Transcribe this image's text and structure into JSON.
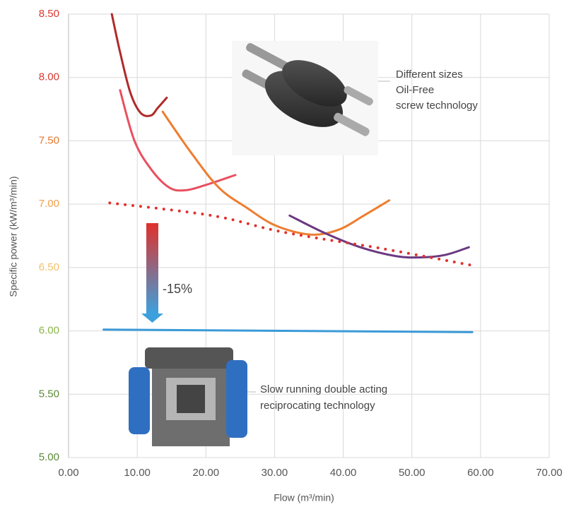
{
  "chart_data": {
    "type": "line",
    "xlabel": "Flow (m³/min)",
    "ylabel": "Specific power (kW/m³/min)",
    "xlim": [
      0,
      70
    ],
    "ylim": [
      5,
      8.5
    ],
    "xticks": [
      {
        "value": 0,
        "label": "0.00"
      },
      {
        "value": 10,
        "label": "10.00"
      },
      {
        "value": 20,
        "label": "20.00"
      },
      {
        "value": 30,
        "label": "30.00"
      },
      {
        "value": 40,
        "label": "40.00"
      },
      {
        "value": 50,
        "label": "50.00"
      },
      {
        "value": 60,
        "label": "60.00"
      },
      {
        "value": 70,
        "label": "70.00"
      }
    ],
    "yticks": [
      {
        "value": 5,
        "label": "5.00"
      },
      {
        "value": 5.5,
        "label": "5.50"
      },
      {
        "value": 6,
        "label": "6.00"
      },
      {
        "value": 6.5,
        "label": "6.50"
      },
      {
        "value": 7,
        "label": "7.00"
      },
      {
        "value": 7.5,
        "label": "7.50"
      },
      {
        "value": 8,
        "label": "8.00"
      },
      {
        "value": 8.5,
        "label": "8.50"
      }
    ],
    "ytick_colors": [
      "#5d8a3a",
      "#5d8a3a",
      "#8db64a",
      "#f2bf6a",
      "#f0a04b",
      "#e8762c",
      "#d9382f",
      "#d9382f"
    ],
    "grid": true,
    "series": [
      {
        "color": "#b02a2a",
        "style": "solid",
        "x": [
          6.3,
          7.5,
          9,
          10.5,
          12,
          13,
          14.3
        ],
        "values": [
          8.5,
          8.2,
          7.88,
          7.72,
          7.7,
          7.76,
          7.84
        ]
      },
      {
        "color": "#e8505f",
        "style": "solid",
        "x": [
          7.5,
          9.6,
          12.1,
          14.7,
          17,
          19.9,
          24.3
        ],
        "values": [
          7.9,
          7.5,
          7.27,
          7.13,
          7.11,
          7.15,
          7.23
        ]
      },
      {
        "color": "#ee7d2f",
        "style": "solid",
        "x": [
          13.7,
          17.8,
          21.9,
          26,
          30.2,
          35.3,
          39.4,
          43,
          46.7
        ],
        "values": [
          7.73,
          7.41,
          7.13,
          6.97,
          6.83,
          6.76,
          6.8,
          6.91,
          7.03
        ]
      },
      {
        "color": "#6b3a80",
        "style": "solid",
        "x": [
          32.2,
          37.4,
          42.5,
          47.7,
          51.3,
          54.9,
          58.3
        ],
        "values": [
          6.91,
          6.77,
          6.66,
          6.59,
          6.58,
          6.6,
          6.66
        ]
      },
      {
        "color": "#e0312f",
        "style": "dotted",
        "x": [
          6,
          20.9,
          31.2,
          45.6,
          58.5
        ],
        "values": [
          7.01,
          6.91,
          6.78,
          6.65,
          6.52
        ]
      },
      {
        "color": "#3b9ad8",
        "style": "solid",
        "x": [
          5.1,
          58.8
        ],
        "values": [
          6.01,
          5.99
        ]
      }
    ],
    "annotations": [
      "Different sizes",
      "Oil-Free",
      "screw technology",
      "Slow running double acting",
      "reciprocating technology",
      "-15%"
    ]
  }
}
